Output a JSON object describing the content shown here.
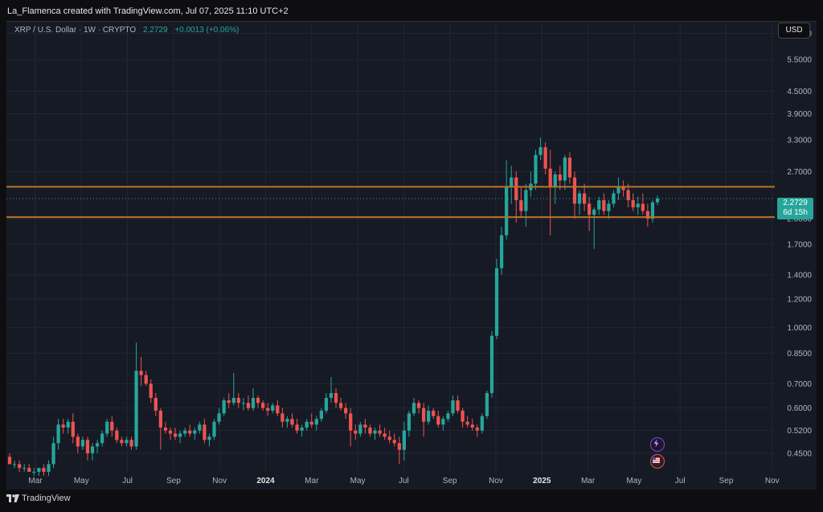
{
  "header": {
    "credit": "La_Flamenca created with TradingView.com, Jul 07, 2025 11:10 UTC+2"
  },
  "symbol": {
    "name": "XRP / U.S. Dollar · 1W · CRYPTO",
    "price": "2.2729",
    "change": "+0.0013 (+0.06%)"
  },
  "currency_button": "USD",
  "last_price": {
    "value": "2.2729",
    "countdown": "6d 15h"
  },
  "footer": {
    "brand": "TradingView"
  },
  "colors": {
    "background": "#161a25",
    "up": "#26a69a",
    "down": "#ef5350",
    "level_line": "#b8742a",
    "grid": "#232632"
  },
  "chart_data": {
    "type": "candlestick",
    "scale": "log",
    "ylim": [
      0.4,
      7.0
    ],
    "y_ticks": [
      "6.5000",
      "5.5000",
      "4.5000",
      "3.9000",
      "3.3000",
      "2.7000",
      "2.0000",
      "1.7000",
      "1.4000",
      "1.2000",
      "1.0000",
      "0.8500",
      "0.7000",
      "0.6000",
      "0.5200",
      "0.4500"
    ],
    "x_ticks": [
      "Mar",
      "May",
      "Jul",
      "Sep",
      "Nov",
      "2024",
      "Mar",
      "May",
      "Jul",
      "Sep",
      "Nov",
      "2025",
      "Mar",
      "May",
      "Jul",
      "Sep",
      "Nov"
    ],
    "horizontal_levels": [
      2.45,
      2.02
    ],
    "last_price": 2.2729,
    "events": [
      "flash-icon",
      "us-flag-icon"
    ],
    "candles": [
      [
        0.44,
        0.45,
        0.43,
        0.42
      ],
      [
        0.42,
        0.43,
        0.41,
        0.42
      ],
      [
        0.42,
        0.43,
        0.4,
        0.41
      ],
      [
        0.41,
        0.42,
        0.4,
        0.41
      ],
      [
        0.41,
        0.42,
        0.4,
        0.4
      ],
      [
        0.4,
        0.41,
        0.39,
        0.4
      ],
      [
        0.4,
        0.41,
        0.39,
        0.41
      ],
      [
        0.41,
        0.42,
        0.39,
        0.4
      ],
      [
        0.4,
        0.43,
        0.39,
        0.42
      ],
      [
        0.42,
        0.5,
        0.41,
        0.48
      ],
      [
        0.48,
        0.56,
        0.46,
        0.54
      ],
      [
        0.54,
        0.56,
        0.51,
        0.53
      ],
      [
        0.53,
        0.56,
        0.51,
        0.55
      ],
      [
        0.55,
        0.58,
        0.48,
        0.5
      ],
      [
        0.5,
        0.51,
        0.45,
        0.47
      ],
      [
        0.47,
        0.5,
        0.46,
        0.49
      ],
      [
        0.49,
        0.5,
        0.43,
        0.45
      ],
      [
        0.45,
        0.48,
        0.43,
        0.47
      ],
      [
        0.47,
        0.49,
        0.45,
        0.48
      ],
      [
        0.48,
        0.52,
        0.47,
        0.51
      ],
      [
        0.51,
        0.56,
        0.5,
        0.55
      ],
      [
        0.55,
        0.57,
        0.5,
        0.52
      ],
      [
        0.52,
        0.53,
        0.48,
        0.49
      ],
      [
        0.49,
        0.5,
        0.47,
        0.48
      ],
      [
        0.48,
        0.5,
        0.47,
        0.49
      ],
      [
        0.49,
        0.5,
        0.46,
        0.47
      ],
      [
        0.47,
        0.91,
        0.46,
        0.76
      ],
      [
        0.76,
        0.83,
        0.69,
        0.74
      ],
      [
        0.74,
        0.76,
        0.69,
        0.7
      ],
      [
        0.7,
        0.72,
        0.62,
        0.64
      ],
      [
        0.64,
        0.66,
        0.57,
        0.59
      ],
      [
        0.59,
        0.6,
        0.46,
        0.53
      ],
      [
        0.53,
        0.55,
        0.51,
        0.52
      ],
      [
        0.52,
        0.53,
        0.49,
        0.51
      ],
      [
        0.51,
        0.53,
        0.49,
        0.5
      ],
      [
        0.5,
        0.52,
        0.48,
        0.51
      ],
      [
        0.51,
        0.53,
        0.5,
        0.52
      ],
      [
        0.52,
        0.54,
        0.5,
        0.51
      ],
      [
        0.51,
        0.53,
        0.49,
        0.52
      ],
      [
        0.52,
        0.55,
        0.51,
        0.54
      ],
      [
        0.54,
        0.56,
        0.48,
        0.49
      ],
      [
        0.49,
        0.51,
        0.47,
        0.5
      ],
      [
        0.5,
        0.56,
        0.49,
        0.55
      ],
      [
        0.55,
        0.6,
        0.54,
        0.58
      ],
      [
        0.58,
        0.64,
        0.57,
        0.63
      ],
      [
        0.63,
        0.66,
        0.6,
        0.62
      ],
      [
        0.62,
        0.75,
        0.61,
        0.64
      ],
      [
        0.64,
        0.66,
        0.6,
        0.62
      ],
      [
        0.62,
        0.64,
        0.59,
        0.62
      ],
      [
        0.62,
        0.65,
        0.59,
        0.6
      ],
      [
        0.6,
        0.68,
        0.59,
        0.64
      ],
      [
        0.64,
        0.65,
        0.6,
        0.62
      ],
      [
        0.62,
        0.63,
        0.59,
        0.6
      ],
      [
        0.6,
        0.62,
        0.57,
        0.59
      ],
      [
        0.59,
        0.62,
        0.58,
        0.61
      ],
      [
        0.61,
        0.63,
        0.57,
        0.58
      ],
      [
        0.58,
        0.6,
        0.53,
        0.55
      ],
      [
        0.55,
        0.57,
        0.53,
        0.56
      ],
      [
        0.56,
        0.58,
        0.53,
        0.54
      ],
      [
        0.54,
        0.56,
        0.51,
        0.52
      ],
      [
        0.52,
        0.54,
        0.5,
        0.53
      ],
      [
        0.53,
        0.56,
        0.52,
        0.55
      ],
      [
        0.55,
        0.58,
        0.53,
        0.54
      ],
      [
        0.54,
        0.57,
        0.52,
        0.56
      ],
      [
        0.56,
        0.6,
        0.55,
        0.59
      ],
      [
        0.59,
        0.66,
        0.58,
        0.64
      ],
      [
        0.64,
        0.73,
        0.62,
        0.66
      ],
      [
        0.66,
        0.68,
        0.6,
        0.62
      ],
      [
        0.62,
        0.64,
        0.59,
        0.6
      ],
      [
        0.6,
        0.62,
        0.56,
        0.58
      ],
      [
        0.58,
        0.6,
        0.47,
        0.52
      ],
      [
        0.52,
        0.54,
        0.49,
        0.51
      ],
      [
        0.51,
        0.55,
        0.5,
        0.54
      ],
      [
        0.54,
        0.56,
        0.51,
        0.53
      ],
      [
        0.53,
        0.54,
        0.5,
        0.51
      ],
      [
        0.51,
        0.53,
        0.49,
        0.52
      ],
      [
        0.52,
        0.54,
        0.5,
        0.51
      ],
      [
        0.51,
        0.53,
        0.49,
        0.5
      ],
      [
        0.5,
        0.52,
        0.48,
        0.49
      ],
      [
        0.49,
        0.51,
        0.47,
        0.48
      ],
      [
        0.48,
        0.5,
        0.42,
        0.46
      ],
      [
        0.46,
        0.55,
        0.43,
        0.52
      ],
      [
        0.52,
        0.59,
        0.5,
        0.58
      ],
      [
        0.58,
        0.64,
        0.57,
        0.62
      ],
      [
        0.62,
        0.63,
        0.58,
        0.6
      ],
      [
        0.6,
        0.62,
        0.5,
        0.55
      ],
      [
        0.55,
        0.61,
        0.54,
        0.59
      ],
      [
        0.59,
        0.6,
        0.56,
        0.57
      ],
      [
        0.57,
        0.59,
        0.53,
        0.54
      ],
      [
        0.54,
        0.57,
        0.52,
        0.56
      ],
      [
        0.56,
        0.59,
        0.55,
        0.58
      ],
      [
        0.58,
        0.65,
        0.57,
        0.63
      ],
      [
        0.63,
        0.65,
        0.58,
        0.59
      ],
      [
        0.59,
        0.6,
        0.53,
        0.55
      ],
      [
        0.55,
        0.57,
        0.53,
        0.54
      ],
      [
        0.54,
        0.56,
        0.52,
        0.53
      ],
      [
        0.53,
        0.54,
        0.5,
        0.52
      ],
      [
        0.52,
        0.58,
        0.51,
        0.57
      ],
      [
        0.57,
        0.67,
        0.56,
        0.66
      ],
      [
        0.66,
        0.98,
        0.64,
        0.95
      ],
      [
        0.95,
        1.55,
        0.93,
        1.46
      ],
      [
        1.46,
        1.9,
        1.4,
        1.8
      ],
      [
        1.8,
        2.9,
        1.75,
        2.45
      ],
      [
        2.45,
        2.8,
        2.2,
        2.6
      ],
      [
        2.6,
        2.7,
        1.95,
        2.25
      ],
      [
        2.25,
        2.45,
        2.02,
        2.1
      ],
      [
        2.1,
        2.5,
        1.9,
        2.4
      ],
      [
        2.4,
        2.7,
        2.3,
        2.5
      ],
      [
        2.5,
        3.1,
        2.4,
        3.0
      ],
      [
        3.0,
        3.35,
        2.9,
        3.15
      ],
      [
        3.15,
        3.25,
        2.65,
        2.75
      ],
      [
        2.75,
        3.1,
        1.8,
        2.45
      ],
      [
        2.45,
        2.7,
        2.2,
        2.65
      ],
      [
        2.65,
        2.8,
        2.4,
        2.55
      ],
      [
        2.55,
        3.0,
        2.4,
        2.95
      ],
      [
        2.95,
        3.05,
        2.5,
        2.6
      ],
      [
        2.6,
        2.7,
        2.0,
        2.2
      ],
      [
        2.2,
        2.4,
        2.05,
        2.35
      ],
      [
        2.35,
        2.5,
        2.1,
        2.2
      ],
      [
        2.2,
        2.3,
        1.85,
        2.05
      ],
      [
        2.05,
        2.15,
        1.65,
        2.12
      ],
      [
        2.12,
        2.3,
        2.05,
        2.25
      ],
      [
        2.25,
        2.35,
        2.05,
        2.1
      ],
      [
        2.1,
        2.25,
        2.0,
        2.2
      ],
      [
        2.2,
        2.4,
        2.15,
        2.35
      ],
      [
        2.35,
        2.6,
        2.25,
        2.45
      ],
      [
        2.45,
        2.55,
        2.3,
        2.4
      ],
      [
        2.4,
        2.5,
        2.15,
        2.25
      ],
      [
        2.25,
        2.35,
        2.1,
        2.15
      ],
      [
        2.15,
        2.3,
        2.05,
        2.2
      ],
      [
        2.2,
        2.35,
        2.05,
        2.1
      ],
      [
        2.1,
        2.2,
        1.9,
        2.0
      ],
      [
        2.0,
        2.25,
        1.95,
        2.22
      ],
      [
        2.22,
        2.32,
        2.18,
        2.2729
      ]
    ]
  }
}
